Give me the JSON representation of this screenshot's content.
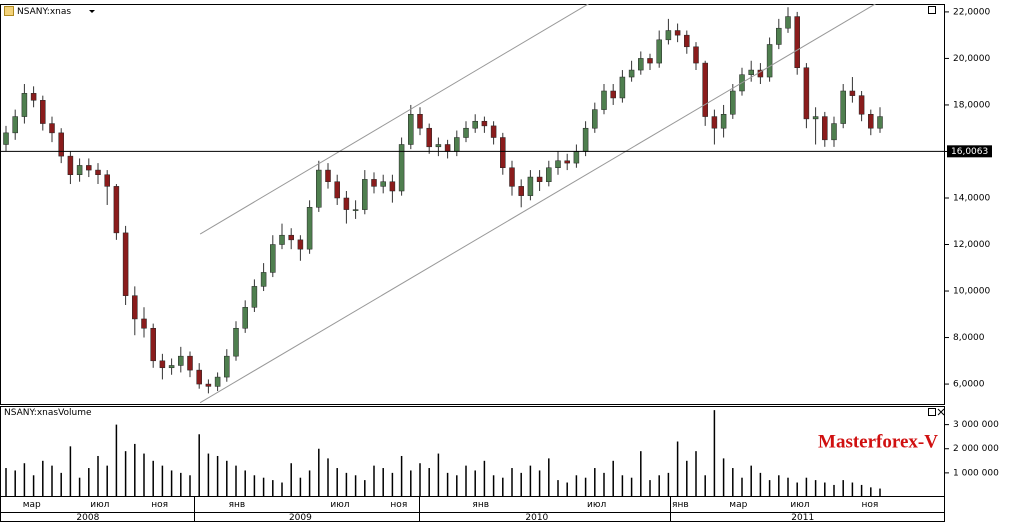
{
  "chart_data": [
    {
      "type": "candlestick",
      "title": "NSANY:xnas",
      "ylim": [
        5100,
        22340
      ],
      "yticks": [
        {
          "value": 6000,
          "label": "6,0000"
        },
        {
          "value": 8000,
          "label": "8,0000"
        },
        {
          "value": 10000,
          "label": "10,0000"
        },
        {
          "value": 12000,
          "label": "12,0000"
        },
        {
          "value": 14000,
          "label": "14,0000"
        },
        {
          "value": 16000,
          "label": "16,0000"
        },
        {
          "value": 18000,
          "label": "18,0000"
        },
        {
          "value": 20000,
          "label": "20,0000"
        },
        {
          "value": 22000,
          "label": "22,0000"
        }
      ],
      "xticks": [
        {
          "value": 2.8,
          "label": "мар"
        },
        {
          "value": 10.2,
          "label": "июл"
        },
        {
          "value": 16.7,
          "label": "ноя"
        },
        {
          "value": 25.1,
          "label": "янв"
        },
        {
          "value": 36.3,
          "label": "июл"
        },
        {
          "value": 42.7,
          "label": "ноя"
        },
        {
          "value": 51.6,
          "label": "янв"
        },
        {
          "value": 64.2,
          "label": "июл"
        },
        {
          "value": 73.3,
          "label": "янв"
        },
        {
          "value": 79.6,
          "label": "мар"
        },
        {
          "value": 86.3,
          "label": "июл"
        },
        {
          "value": 93.9,
          "label": "ноя"
        }
      ],
      "year_ticks": [
        {
          "value": 8.9,
          "label": "2008"
        },
        {
          "value": 32,
          "label": "2009"
        },
        {
          "value": 57.7,
          "label": "2010"
        },
        {
          "value": 86.6,
          "label": "2011"
        }
      ],
      "up_color": "#4f7f4f",
      "down_color": "#8a1c1c",
      "open": [
        16300,
        16800,
        17500,
        18500,
        18200,
        17200,
        16800,
        15800,
        15000,
        15400,
        15200,
        15000,
        14500,
        12500,
        9800,
        8800,
        8400,
        7000,
        6700,
        6800,
        7200,
        6600,
        6000,
        5900,
        6300,
        7200,
        8400,
        9300,
        10200,
        10800,
        12000,
        12400,
        12200,
        11800,
        13600,
        15200,
        14700,
        14000,
        13500,
        13500,
        14800,
        14500,
        14700,
        14300,
        16300,
        17600,
        17000,
        16200,
        16300,
        16000,
        16600,
        17000,
        17300,
        17100,
        16600,
        15300,
        14500,
        14100,
        14900,
        14700,
        15300,
        15600,
        15500,
        16000,
        17000,
        17800,
        18600,
        18300,
        19200,
        19500,
        20000,
        19800,
        20800,
        21200,
        21000,
        20500,
        19800,
        17500,
        17000,
        17600,
        18600,
        19300,
        19500,
        19200,
        20600,
        21300,
        21800,
        19600,
        17400,
        17500,
        16500,
        17200,
        18600,
        18400,
        17600,
        17000
      ],
      "high": [
        17100,
        17800,
        18900,
        18800,
        18400,
        17500,
        17000,
        16000,
        15700,
        15700,
        15500,
        15200,
        14600,
        12800,
        10200,
        9300,
        8600,
        7300,
        7100,
        7600,
        7400,
        6900,
        6200,
        6500,
        7500,
        8700,
        9600,
        10500,
        11200,
        12400,
        12900,
        12700,
        12400,
        13900,
        15600,
        15500,
        15000,
        14300,
        13900,
        15200,
        15100,
        15000,
        15000,
        16600,
        18000,
        17900,
        17200,
        16600,
        16500,
        16900,
        17300,
        17600,
        17500,
        17300,
        16800,
        15600,
        14800,
        15200,
        15200,
        15600,
        16000,
        15900,
        16300,
        17300,
        18100,
        18900,
        18900,
        19500,
        19900,
        20300,
        20200,
        21200,
        21700,
        21500,
        21200,
        20700,
        19900,
        17800,
        18000,
        18900,
        19600,
        19900,
        19800,
        20900,
        21700,
        22200,
        22000,
        19800,
        17900,
        17700,
        17500,
        18900,
        19200,
        18600,
        17800,
        17900
      ],
      "low": [
        16000,
        16500,
        17200,
        17900,
        16900,
        16400,
        15500,
        14600,
        14700,
        14900,
        14600,
        13700,
        12200,
        9400,
        8100,
        8000,
        6700,
        6200,
        6400,
        6500,
        6300,
        5800,
        5600,
        5700,
        6100,
        7000,
        8200,
        9100,
        10000,
        10600,
        11800,
        11800,
        11300,
        11600,
        13400,
        14400,
        13700,
        12900,
        13100,
        13300,
        14200,
        14200,
        13800,
        14100,
        16100,
        16700,
        15900,
        15800,
        15700,
        15800,
        16400,
        16800,
        16800,
        16300,
        15000,
        14100,
        13600,
        13900,
        14300,
        14500,
        15000,
        15200,
        15300,
        15800,
        16800,
        17600,
        18000,
        18100,
        19000,
        19300,
        19500,
        19600,
        20600,
        20700,
        20200,
        19500,
        17100,
        16300,
        16600,
        17400,
        18400,
        19000,
        18900,
        19000,
        20400,
        21100,
        19300,
        17000,
        16300,
        16200,
        16200,
        17000,
        18100,
        17300,
        16700,
        16800
      ],
      "close": [
        16800,
        17500,
        18500,
        18200,
        17200,
        16800,
        15800,
        15000,
        15400,
        15200,
        15000,
        14500,
        12500,
        9800,
        8800,
        8400,
        7000,
        6700,
        6800,
        7200,
        6600,
        6000,
        5900,
        6300,
        7200,
        8400,
        9300,
        10200,
        10800,
        12000,
        12400,
        12200,
        11800,
        13600,
        15200,
        14700,
        14000,
        13500,
        13500,
        14800,
        14500,
        14700,
        14300,
        16300,
        17600,
        17000,
        16200,
        16300,
        16000,
        16600,
        17000,
        17300,
        17100,
        16600,
        15300,
        14500,
        14100,
        14900,
        14700,
        15300,
        15600,
        15500,
        16000,
        17000,
        17800,
        18600,
        18300,
        19200,
        19500,
        20000,
        19800,
        20800,
        21200,
        21000,
        20500,
        19800,
        17500,
        17000,
        17600,
        18600,
        19300,
        19500,
        19200,
        20600,
        21300,
        21800,
        19600,
        17400,
        17500,
        16500,
        17200,
        18600,
        18400,
        17600,
        17000,
        17500
      ],
      "hline": {
        "value": 16006.3,
        "label": "16,0063"
      },
      "trend_lines": [
        {
          "x": [
            21.1,
            63.5
          ],
          "y": [
            12450,
            22390
          ]
        },
        {
          "x": [
            21.1,
            94.7
          ],
          "y": [
            5200,
            22390
          ]
        }
      ],
      "watermark": "Masterforex-V"
    },
    {
      "type": "bar",
      "title": "NSANY:xnasVolume",
      "color": "#000000",
      "ylim": [
        0,
        3730000
      ],
      "yticks": [
        {
          "value": 1000000,
          "label": "1 000 000"
        },
        {
          "value": 2000000,
          "label": "2 000 000"
        },
        {
          "value": 3000000,
          "label": "3 000 000"
        }
      ],
      "values": [
        1200000,
        1100000,
        1400000,
        900000,
        1500000,
        1300000,
        1000000,
        2100000,
        800000,
        1200000,
        1700000,
        1300000,
        3000000,
        1900000,
        2200000,
        1800000,
        1500000,
        1300000,
        1100000,
        1000000,
        900000,
        2600000,
        1800000,
        1700000,
        1500000,
        1300000,
        1100000,
        900000,
        800000,
        700000,
        600000,
        1400000,
        800000,
        1100000,
        2000000,
        1600000,
        1200000,
        1000000,
        900000,
        700000,
        1300000,
        1200000,
        1000000,
        1700000,
        1100000,
        1400000,
        1200000,
        1800000,
        1000000,
        900000,
        1300000,
        1100000,
        1500000,
        900000,
        800000,
        1200000,
        1000000,
        1300000,
        1100000,
        1600000,
        700000,
        600000,
        900000,
        800000,
        1200000,
        1000000,
        1500000,
        900000,
        800000,
        1900000,
        700000,
        900000,
        1000000,
        2300000,
        1500000,
        1900000,
        900000,
        3600000,
        1600000,
        1200000,
        800000,
        1300000,
        1000000,
        700000,
        900000,
        800000,
        600000,
        800000,
        700000,
        600000,
        500000,
        700000,
        600000,
        500000,
        400000,
        350000
      ]
    }
  ]
}
